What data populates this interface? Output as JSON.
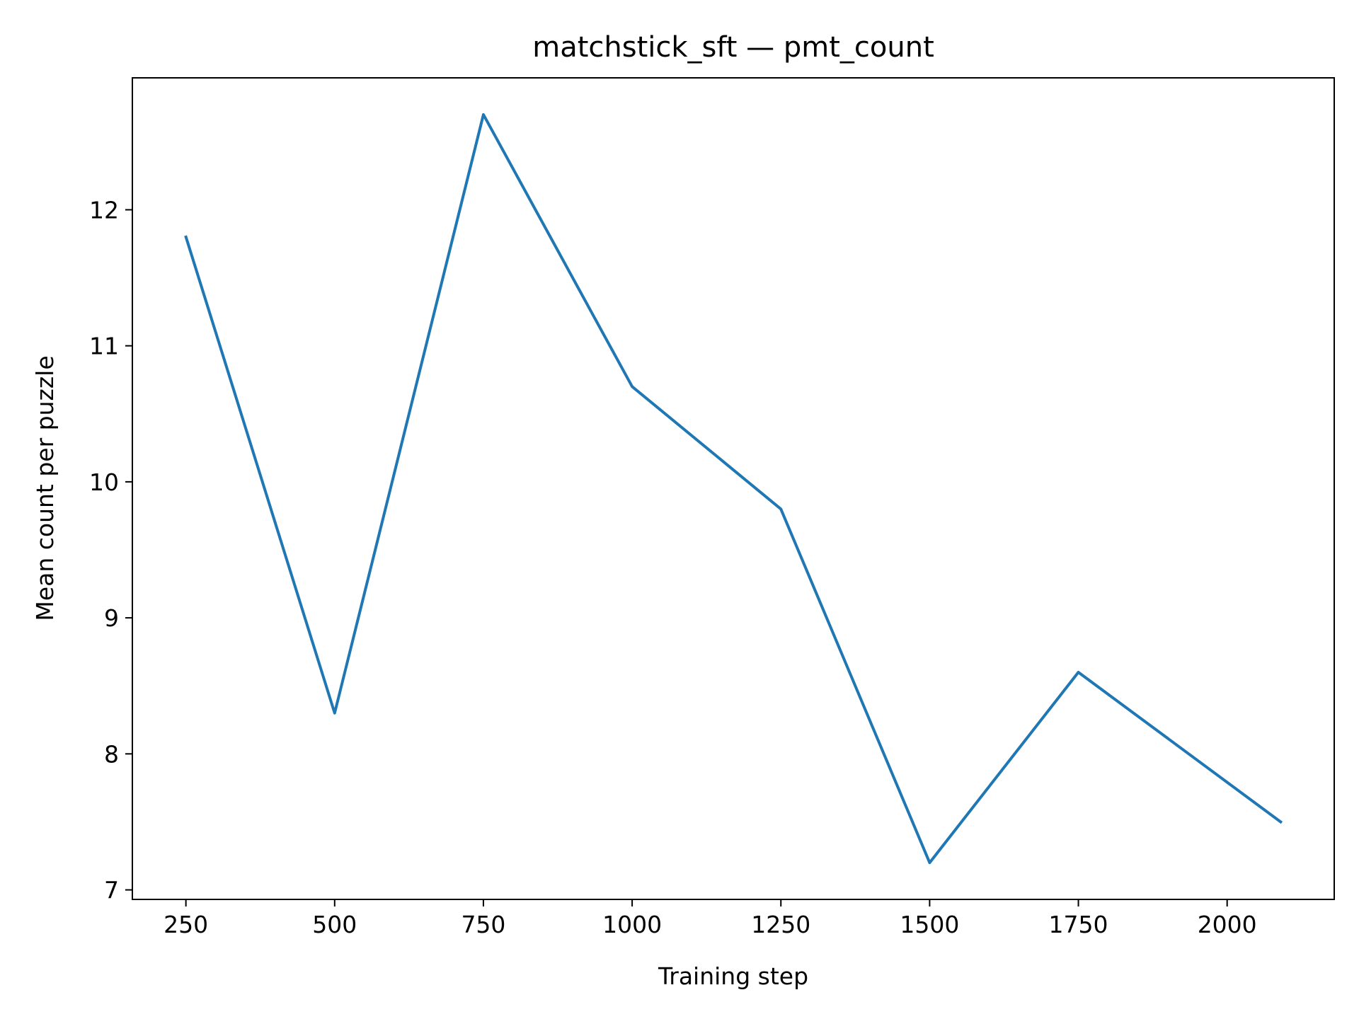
{
  "chart_data": {
    "type": "line",
    "title": "matchstick_sft — pmt_count",
    "xlabel": "Training step",
    "ylabel": "Mean count per puzzle",
    "xlim": [
      160,
      2180
    ],
    "ylim": [
      6.93,
      12.97
    ],
    "xticks": [
      250,
      500,
      750,
      1000,
      1250,
      1500,
      1750,
      2000
    ],
    "yticks": [
      7,
      8,
      9,
      10,
      11,
      12
    ],
    "grid": false,
    "legend": "none",
    "series": [
      {
        "color": "#1f77b4",
        "x": [
          250,
          500,
          750,
          1000,
          1250,
          1500,
          1750,
          2090
        ],
        "y": [
          11.8,
          8.3,
          12.7,
          10.7,
          9.8,
          7.2,
          8.6,
          7.5
        ]
      }
    ]
  }
}
